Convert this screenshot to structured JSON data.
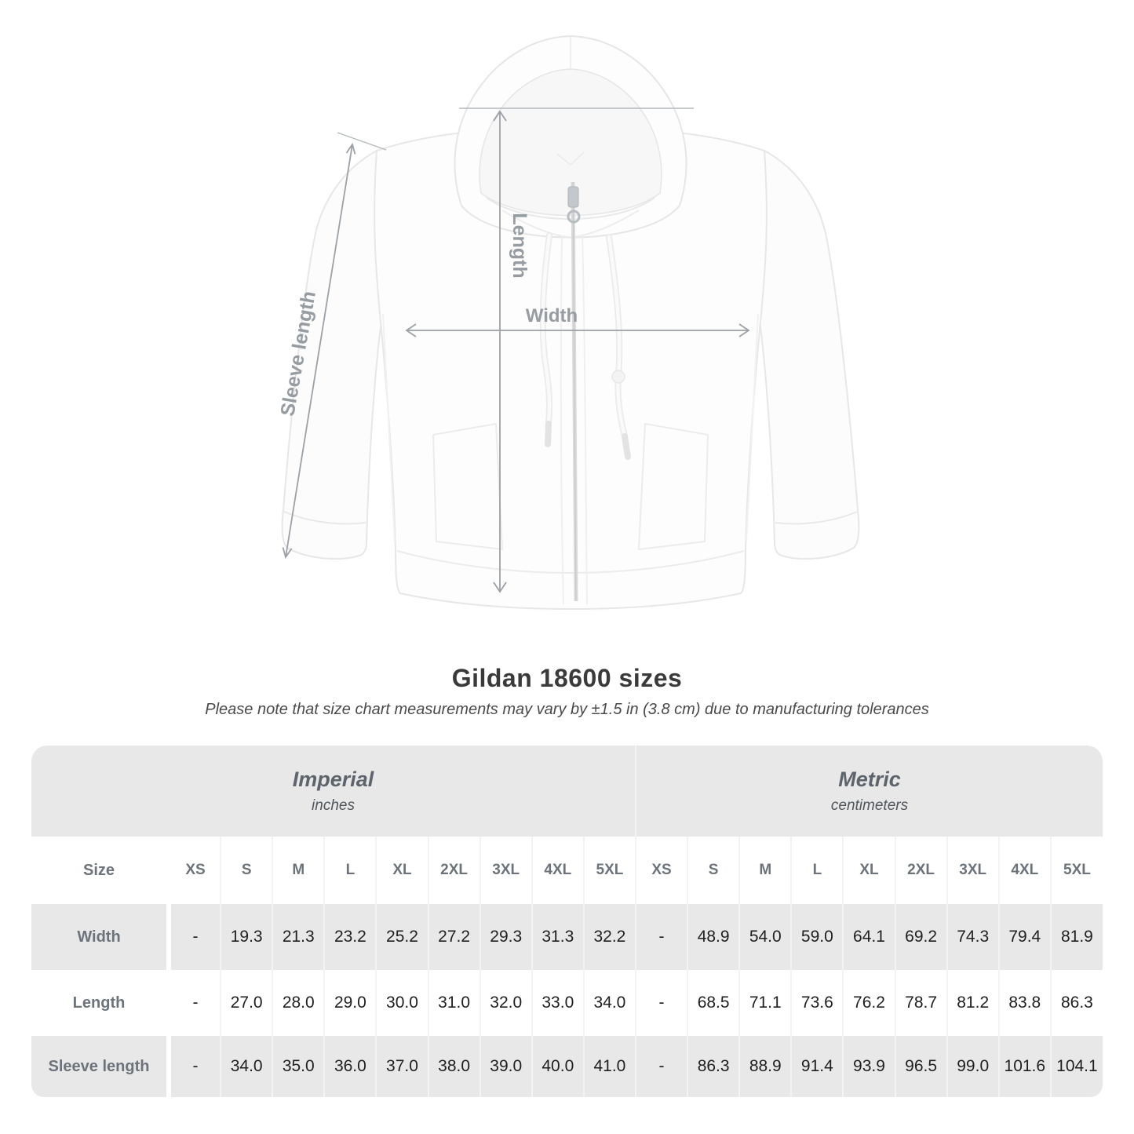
{
  "title": "Gildan 18600 sizes",
  "subtitle": "Please note that size chart measurements may vary by ±1.5 in (3.8 cm) due to manufacturing tolerances",
  "diagram": {
    "labels": {
      "length": "Length",
      "width": "Width",
      "sleeve": "Sleeve length"
    }
  },
  "table": {
    "size_label": "Size",
    "groups": [
      {
        "name": "Imperial",
        "unit": "inches"
      },
      {
        "name": "Metric",
        "unit": "centimeters"
      }
    ],
    "sizes_imperial": [
      "XS",
      "S",
      "M",
      "L",
      "XL",
      "2XL",
      "3XL",
      "4XL",
      "5XL"
    ],
    "sizes_metric": [
      "XS",
      "S",
      "M",
      "L",
      "XL",
      "2XL",
      "3XL",
      "4XL",
      "5XL"
    ],
    "rows": [
      {
        "label": "Width",
        "imperial": [
          "-",
          "19.3",
          "21.3",
          "23.2",
          "25.2",
          "27.2",
          "29.3",
          "31.3",
          "32.2"
        ],
        "metric": [
          "-",
          "48.9",
          "54.0",
          "59.0",
          "64.1",
          "69.2",
          "74.3",
          "79.4",
          "81.9"
        ]
      },
      {
        "label": "Length",
        "imperial": [
          "-",
          "27.0",
          "28.0",
          "29.0",
          "30.0",
          "31.0",
          "32.0",
          "33.0",
          "34.0"
        ],
        "metric": [
          "-",
          "68.5",
          "71.1",
          "73.6",
          "76.2",
          "78.7",
          "81.2",
          "83.8",
          "86.3"
        ]
      },
      {
        "label": "Sleeve length",
        "imperial": [
          "-",
          "34.0",
          "35.0",
          "36.0",
          "37.0",
          "38.0",
          "39.0",
          "40.0",
          "41.0"
        ],
        "metric": [
          "-",
          "86.3",
          "88.9",
          "91.4",
          "93.9",
          "96.5",
          "99.0",
          "101.6",
          "104.1"
        ]
      }
    ]
  },
  "colors": {
    "table_band": "#e8e8e8",
    "row_stripe": "#e8e8e8",
    "measure_line": "#9ba1a6",
    "measure_label": "#969ca1",
    "value_text": "#1f1f1f",
    "label_text": "#6d737a"
  }
}
